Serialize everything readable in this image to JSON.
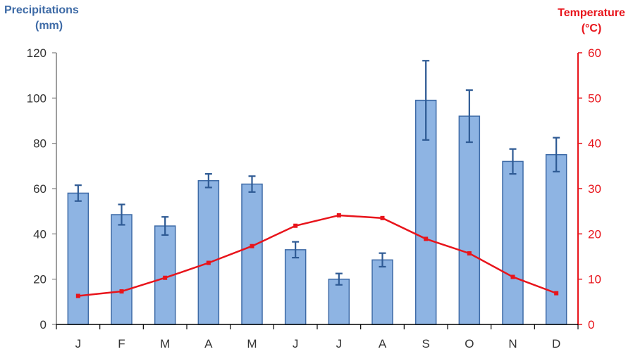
{
  "chart_data": {
    "type": "bar",
    "categories": [
      "J",
      "F",
      "M",
      "A",
      "M",
      "J",
      "J",
      "A",
      "S",
      "O",
      "N",
      "D"
    ],
    "series": [
      {
        "name": "Precipitations",
        "type": "bar",
        "axis": "left",
        "values": [
          58,
          48.5,
          43.5,
          63.5,
          62,
          33,
          20,
          28.5,
          99,
          92,
          72,
          75
        ],
        "error_upper": [
          3.5,
          4.5,
          4.0,
          3.0,
          3.5,
          3.5,
          2.5,
          3.0,
          17.5,
          11.5,
          5.5,
          7.5
        ],
        "error_lower": [
          3.5,
          4.5,
          4.0,
          3.0,
          3.5,
          3.5,
          2.5,
          3.0,
          17.5,
          11.5,
          5.5,
          7.5
        ]
      },
      {
        "name": "Temperature",
        "type": "line",
        "axis": "right",
        "values": [
          6.3,
          7.3,
          10.3,
          13.6,
          17.3,
          21.8,
          24.1,
          23.5,
          18.9,
          15.7,
          10.5,
          6.9
        ]
      }
    ],
    "left_axis": {
      "label_line1": "Precipitations",
      "label_line2": "(mm)",
      "ylim": [
        0,
        120
      ],
      "ticks": [
        "0",
        "20",
        "40",
        "60",
        "80",
        "100",
        "120"
      ],
      "color": "#3d6aa6"
    },
    "right_axis": {
      "label_line1": "Temperature",
      "label_line2": "(°C)",
      "ylim": [
        0,
        60
      ],
      "ticks": [
        "0",
        "10",
        "20",
        "30",
        "40",
        "50",
        "60"
      ],
      "color": "#e8141b"
    },
    "grid": false,
    "legend": "none",
    "colors": {
      "bar_fill": "#8eb4e3",
      "bar_stroke": "#3d6aa6",
      "error_bar": "#2e5a94",
      "line": "#e8141b",
      "axis_text": "#333333"
    }
  }
}
